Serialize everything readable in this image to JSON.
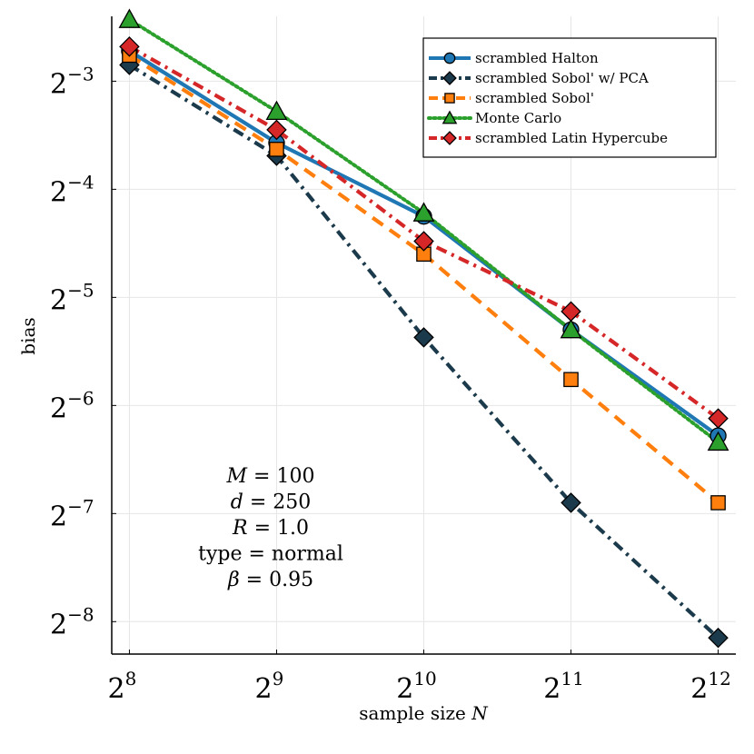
{
  "chart_data": {
    "type": "line",
    "title": "",
    "xlabel": "sample size N",
    "ylabel": "bias",
    "x_scale": "log2",
    "y_scale": "log2",
    "xlim_log2": [
      7.88,
      12.12
    ],
    "ylim_log2": [
      -8.3,
      -2.4
    ],
    "x_ticks": [
      {
        "exp": 8,
        "base": "2",
        "power": "8"
      },
      {
        "exp": 9,
        "base": "2",
        "power": "9"
      },
      {
        "exp": 10,
        "base": "2",
        "power": "10"
      },
      {
        "exp": 11,
        "base": "2",
        "power": "11"
      },
      {
        "exp": 12,
        "base": "2",
        "power": "12"
      }
    ],
    "y_ticks": [
      {
        "exp": -3,
        "base": "2",
        "power": "−3"
      },
      {
        "exp": -4,
        "base": "2",
        "power": "−4"
      },
      {
        "exp": -5,
        "base": "2",
        "power": "−5"
      },
      {
        "exp": -6,
        "base": "2",
        "power": "−6"
      },
      {
        "exp": -7,
        "base": "2",
        "power": "−7"
      },
      {
        "exp": -8,
        "base": "2",
        "power": "−8"
      }
    ],
    "x": [
      256,
      512,
      1024,
      2048,
      4096
    ],
    "series": [
      {
        "name": "scrambled Halton",
        "color": "#1f77b4",
        "dash": "solid",
        "marker": "circle",
        "log2_values": [
          -2.72,
          -3.57,
          -4.25,
          -5.3,
          -6.28
        ]
      },
      {
        "name": "scrambled Sobol' w/ PCA",
        "color": "#1b3a4b",
        "dash": "dashdot",
        "marker": "diamond",
        "log2_values": [
          -2.85,
          -3.69,
          -5.37,
          -6.9,
          -8.15
        ]
      },
      {
        "name": "scrambled Sobol'",
        "color": "#ff7f0e",
        "dash": "dash",
        "marker": "square",
        "log2_values": [
          -2.76,
          -3.63,
          -4.6,
          -5.76,
          -6.9
        ]
      },
      {
        "name": "Monte Carlo",
        "color": "#2ca02c",
        "dash": "dot",
        "marker": "triangle",
        "log2_values": [
          -2.43,
          -3.28,
          -4.22,
          -5.3,
          -6.34
        ]
      },
      {
        "name": "scrambled Latin Hypercube",
        "color": "#d62728",
        "dash": "dashdot",
        "marker": "diamond",
        "log2_values": [
          -2.68,
          -3.45,
          -4.48,
          -5.13,
          -6.12
        ]
      }
    ],
    "annotations": [
      {
        "var": "M",
        "value": "100"
      },
      {
        "var": "d",
        "value": "250"
      },
      {
        "var": "R",
        "value": "1.0"
      },
      {
        "var": "type",
        "value": "normal"
      },
      {
        "var": "β",
        "value": "0.95"
      }
    ],
    "grid": true,
    "legend_position": "top-right"
  }
}
